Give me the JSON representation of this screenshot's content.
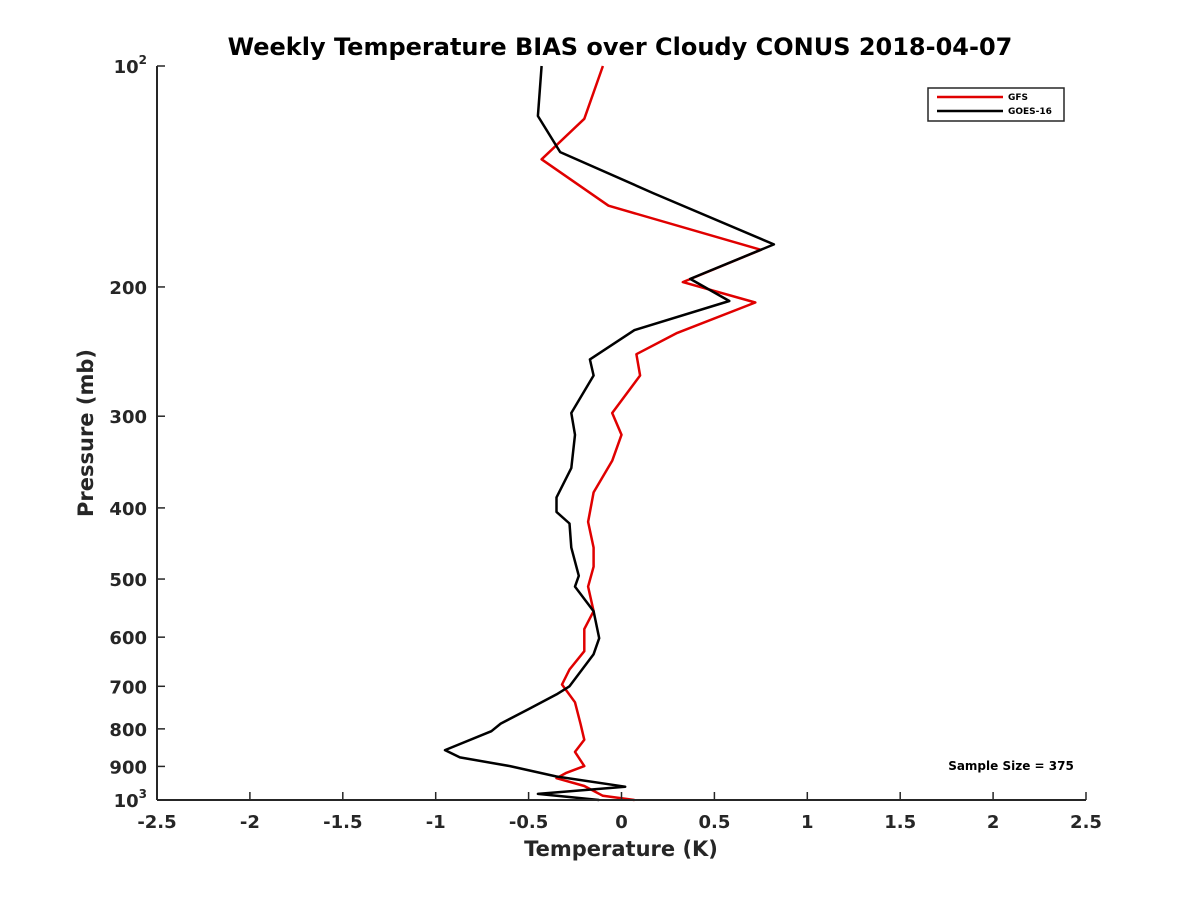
{
  "chart_data": {
    "type": "line",
    "title": "Weekly Temperature BIAS over Cloudy CONUS 2018-04-07",
    "xlabel": "Temperature (K)",
    "ylabel": "Pressure (mb)",
    "xlim": [
      -2.5,
      2.5
    ],
    "ylim": [
      100,
      1000
    ],
    "y_scale": "log",
    "y_reversed": true,
    "grid": false,
    "legend_position": "top-right",
    "xticks": [
      {
        "value": -2.5,
        "label": "-2.5"
      },
      {
        "value": -2,
        "label": "-2"
      },
      {
        "value": -1.5,
        "label": "-1.5"
      },
      {
        "value": -1,
        "label": "-1"
      },
      {
        "value": -0.5,
        "label": "-0.5"
      },
      {
        "value": 0,
        "label": "0"
      },
      {
        "value": 0.5,
        "label": "0.5"
      },
      {
        "value": 1,
        "label": "1"
      },
      {
        "value": 1.5,
        "label": "1.5"
      },
      {
        "value": 2,
        "label": "2"
      },
      {
        "value": 2.5,
        "label": "2.5"
      }
    ],
    "yticks": [
      {
        "value": 100,
        "label": "10",
        "sup": "2"
      },
      {
        "value": 200,
        "label": "200"
      },
      {
        "value": 300,
        "label": "300"
      },
      {
        "value": 400,
        "label": "400"
      },
      {
        "value": 500,
        "label": "500"
      },
      {
        "value": 600,
        "label": "600"
      },
      {
        "value": 700,
        "label": "700"
      },
      {
        "value": 800,
        "label": "800"
      },
      {
        "value": 900,
        "label": "900"
      },
      {
        "value": 1000,
        "label": "10",
        "sup": "3"
      }
    ],
    "annotation": "Sample Size = 375",
    "series": [
      {
        "name": "GFS",
        "color": "#e00000",
        "points": [
          [
            0.07,
            1000
          ],
          [
            -0.1,
            987
          ],
          [
            -0.2,
            957
          ],
          [
            -0.35,
            934
          ],
          [
            -0.3,
            919
          ],
          [
            -0.2,
            899
          ],
          [
            -0.25,
            860
          ],
          [
            -0.2,
            828
          ],
          [
            -0.22,
            788
          ],
          [
            -0.25,
            736
          ],
          [
            -0.32,
            696
          ],
          [
            -0.28,
            664
          ],
          [
            -0.2,
            627
          ],
          [
            -0.2,
            585
          ],
          [
            -0.15,
            553
          ],
          [
            -0.18,
            512
          ],
          [
            -0.15,
            481
          ],
          [
            -0.15,
            453
          ],
          [
            -0.18,
            418
          ],
          [
            -0.15,
            381
          ],
          [
            -0.05,
            345
          ],
          [
            0.0,
            318
          ],
          [
            -0.05,
            297
          ],
          [
            0.1,
            264
          ],
          [
            0.08,
            247
          ],
          [
            0.3,
            231
          ],
          [
            0.72,
            210
          ],
          [
            0.33,
            197
          ],
          [
            0.75,
            178
          ],
          [
            -0.07,
            155
          ],
          [
            -0.43,
            134
          ],
          [
            -0.2,
            118
          ],
          [
            -0.1,
            100
          ]
        ]
      },
      {
        "name": "GOES-16",
        "color": "#000000",
        "points": [
          [
            -0.12,
            1000
          ],
          [
            -0.45,
            981
          ],
          [
            0.02,
            959
          ],
          [
            -0.35,
            929
          ],
          [
            -0.6,
            899
          ],
          [
            -0.87,
            875
          ],
          [
            -0.95,
            855
          ],
          [
            -0.7,
            806
          ],
          [
            -0.65,
            787
          ],
          [
            -0.5,
            752
          ],
          [
            -0.35,
            718
          ],
          [
            -0.28,
            700
          ],
          [
            -0.15,
            633
          ],
          [
            -0.12,
            602
          ],
          [
            -0.15,
            553
          ],
          [
            -0.25,
            512
          ],
          [
            -0.23,
            495
          ],
          [
            -0.27,
            453
          ],
          [
            -0.28,
            420
          ],
          [
            -0.35,
            405
          ],
          [
            -0.35,
            387
          ],
          [
            -0.27,
            353
          ],
          [
            -0.25,
            318
          ],
          [
            -0.27,
            297
          ],
          [
            -0.15,
            264
          ],
          [
            -0.17,
            251
          ],
          [
            0.07,
            229
          ],
          [
            0.58,
            209
          ],
          [
            0.37,
            195
          ],
          [
            0.82,
            175
          ],
          [
            0.17,
            149
          ],
          [
            -0.33,
            131
          ],
          [
            -0.45,
            117
          ],
          [
            -0.43,
            100
          ]
        ]
      }
    ]
  }
}
